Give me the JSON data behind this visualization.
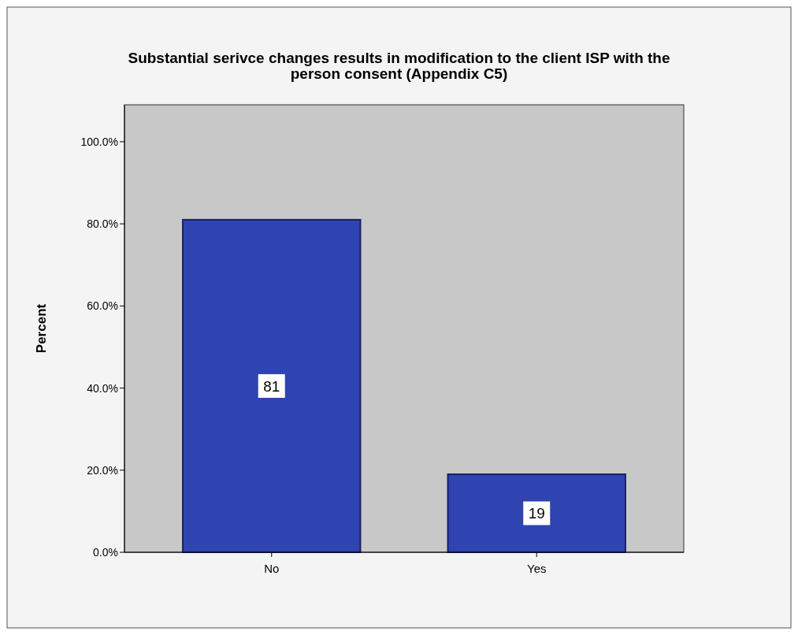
{
  "chart_data": {
    "type": "bar",
    "title": "Substantial serivce changes results in modification to the client ISP with the person consent (Appendix C5)",
    "ylabel": "Percent",
    "categories": [
      "No",
      "Yes"
    ],
    "values": [
      81,
      19
    ],
    "color": "#2f44b0",
    "data_labels": true,
    "ylim": [
      0,
      109
    ],
    "yticks": [
      {
        "value": 0,
        "label": "0.0%"
      },
      {
        "value": 20,
        "label": "20.0%"
      },
      {
        "value": 40,
        "label": "40.0%"
      },
      {
        "value": 60,
        "label": "60.0%"
      },
      {
        "value": 80,
        "label": "80.0%"
      },
      {
        "value": 100,
        "label": "100.0%"
      }
    ],
    "grid": false
  }
}
